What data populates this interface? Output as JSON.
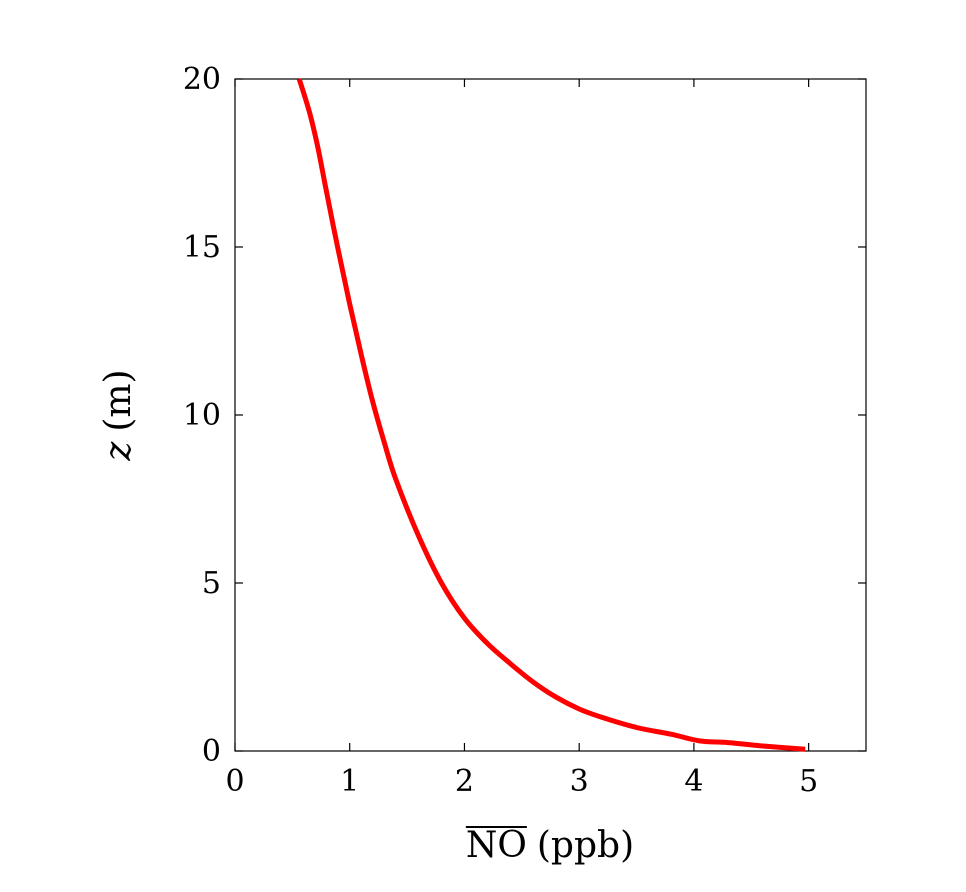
{
  "chart_data": {
    "type": "line",
    "xlabel": "NO (ppb)",
    "xlabel_main": "NO",
    "xlabel_unit": "(ppb)",
    "xlabel_overline": true,
    "ylabel": "z (m)",
    "ylabel_var": "z",
    "ylabel_unit": "(m)",
    "xlim": [
      0,
      5.5
    ],
    "ylim": [
      0,
      20
    ],
    "xticks": [
      0,
      1,
      2,
      3,
      4,
      5
    ],
    "yticks": [
      0,
      5,
      10,
      15,
      20
    ],
    "grid": false,
    "series": [
      {
        "color": "#ff0000",
        "x": [
          4.97,
          4.6,
          4.3,
          4.05,
          3.8,
          3.5,
          3.2,
          3.0,
          2.8,
          2.6,
          2.4,
          2.2,
          2.0,
          1.8,
          1.6,
          1.4,
          1.3,
          1.2,
          1.1,
          1.0,
          0.9,
          0.8,
          0.72,
          0.65,
          0.56
        ],
        "y": [
          0.05,
          0.15,
          0.25,
          0.3,
          0.5,
          0.7,
          1.0,
          1.25,
          1.6,
          2.05,
          2.6,
          3.2,
          3.95,
          5.0,
          6.4,
          8.1,
          9.2,
          10.4,
          11.8,
          13.3,
          14.9,
          16.6,
          18.0,
          19.0,
          20.0
        ]
      }
    ]
  }
}
